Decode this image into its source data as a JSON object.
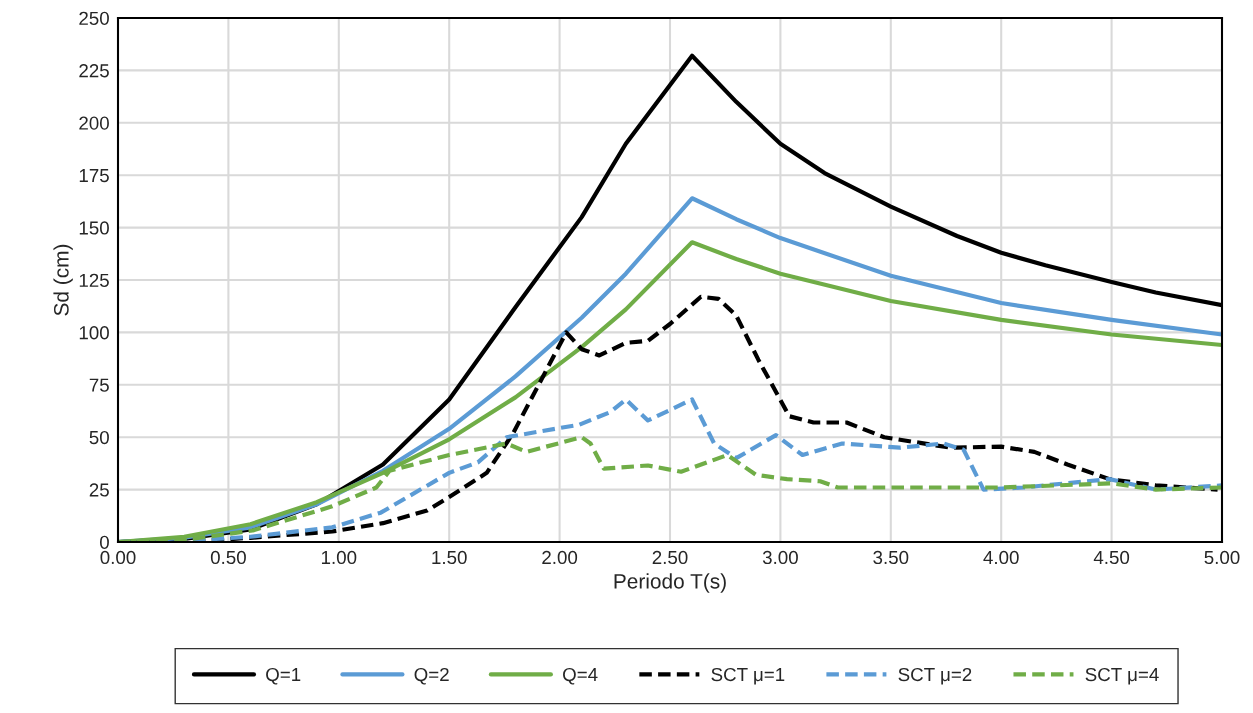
{
  "chart_data": {
    "type": "line",
    "xlabel": "Periodo T(s)",
    "ylabel": "Sd (cm)",
    "xlim": [
      0,
      5
    ],
    "ylim": [
      0,
      250
    ],
    "xticks": [
      {
        "value": 0,
        "label": "0.00"
      },
      {
        "value": 0.5,
        "label": "0.50"
      },
      {
        "value": 1,
        "label": "1.00"
      },
      {
        "value": 1.5,
        "label": "1.50"
      },
      {
        "value": 2,
        "label": "2.00"
      },
      {
        "value": 2.5,
        "label": "2.50"
      },
      {
        "value": 3,
        "label": "3.00"
      },
      {
        "value": 3.5,
        "label": "3.50"
      },
      {
        "value": 4,
        "label": "4.00"
      },
      {
        "value": 4.5,
        "label": "4.50"
      },
      {
        "value": 5,
        "label": "5.00"
      }
    ],
    "yticks": [
      0,
      25,
      50,
      75,
      100,
      125,
      150,
      175,
      200,
      225,
      250
    ],
    "grid": true,
    "legend": "bottom",
    "marker": "none",
    "series": [
      {
        "name": "Q=1",
        "color": "#000000",
        "line_style": "solid",
        "x": [
          0,
          0.3,
          0.6,
          0.9,
          1.2,
          1.5,
          1.8,
          2.1,
          2.3,
          2.6,
          2.8,
          3.0,
          3.2,
          3.5,
          3.8,
          4.0,
          4.2,
          4.5,
          4.7,
          5.0
        ],
        "values": [
          0,
          1.5,
          6,
          18,
          37,
          68,
          112,
          155,
          190,
          232,
          210,
          190,
          176,
          160,
          146,
          138,
          132,
          124,
          119,
          113
        ]
      },
      {
        "name": "Q=2",
        "color": "#5b9bd5",
        "line_style": "solid",
        "x": [
          0,
          0.3,
          0.6,
          0.9,
          1.2,
          1.5,
          1.8,
          2.1,
          2.3,
          2.6,
          2.8,
          3.0,
          3.5,
          4.0,
          4.5,
          5.0
        ],
        "values": [
          0,
          2,
          7,
          18,
          34,
          54,
          79,
          107,
          128,
          164,
          154,
          145,
          127,
          114,
          106,
          99
        ]
      },
      {
        "name": "Q=4",
        "color": "#70ad47",
        "line_style": "solid",
        "x": [
          0,
          0.3,
          0.6,
          0.9,
          1.2,
          1.5,
          1.8,
          2.1,
          2.3,
          2.6,
          2.8,
          3.0,
          3.5,
          4.0,
          4.5,
          5.0
        ],
        "values": [
          0,
          2.5,
          8.5,
          19,
          33,
          49,
          69,
          93,
          111,
          143,
          135,
          128,
          115,
          106,
          99,
          94
        ]
      },
      {
        "name": "SCT μ=1",
        "color": "#000000",
        "line_style": "dashed",
        "x": [
          0,
          0.3,
          0.6,
          0.97,
          1.2,
          1.4,
          1.5,
          1.67,
          1.79,
          1.9,
          2.03,
          2.1,
          2.18,
          2.3,
          2.4,
          2.5,
          2.64,
          2.72,
          2.8,
          2.9,
          3.04,
          3.15,
          3.3,
          3.47,
          3.77,
          4.0,
          4.15,
          4.3,
          4.49,
          4.7,
          4.98
        ],
        "values": [
          0,
          0,
          2,
          5,
          9,
          15,
          21.5,
          33,
          52,
          74,
          100,
          92,
          89,
          95,
          96,
          104,
          117,
          116,
          108,
          87,
          60,
          57,
          57,
          50,
          45,
          45.5,
          43,
          37,
          30,
          27,
          25
        ]
      },
      {
        "name": "SCT μ=2",
        "color": "#5b9bd5",
        "line_style": "dashed",
        "x": [
          0,
          0.3,
          0.6,
          0.97,
          1.19,
          1.5,
          1.63,
          1.76,
          2.09,
          2.23,
          2.3,
          2.4,
          2.6,
          2.7,
          2.8,
          2.98,
          3.1,
          3.28,
          3.54,
          3.74,
          3.83,
          3.92,
          4.1,
          4.49,
          4.7,
          5.0
        ],
        "values": [
          0,
          0.5,
          2.5,
          7,
          14,
          33,
          38,
          50,
          56,
          62,
          68,
          58,
          68,
          47,
          40,
          51,
          41.5,
          47,
          45,
          47,
          44,
          25,
          26,
          30,
          25,
          27
        ]
      },
      {
        "name": "SCT μ=4",
        "color": "#70ad47",
        "line_style": "dashed",
        "x": [
          0,
          0.3,
          0.61,
          0.97,
          1.17,
          1.23,
          1.5,
          1.76,
          1.85,
          2.1,
          2.14,
          2.2,
          2.4,
          2.55,
          2.76,
          2.89,
          3.03,
          3.18,
          3.26,
          3.5,
          4.0,
          4.5,
          4.7,
          5.0
        ],
        "values": [
          0,
          1,
          5.5,
          17,
          26,
          34,
          41.5,
          47,
          43,
          50,
          47,
          35,
          36.5,
          33.5,
          41.5,
          32,
          30,
          29,
          26,
          26,
          26,
          28,
          25,
          26
        ]
      }
    ]
  }
}
